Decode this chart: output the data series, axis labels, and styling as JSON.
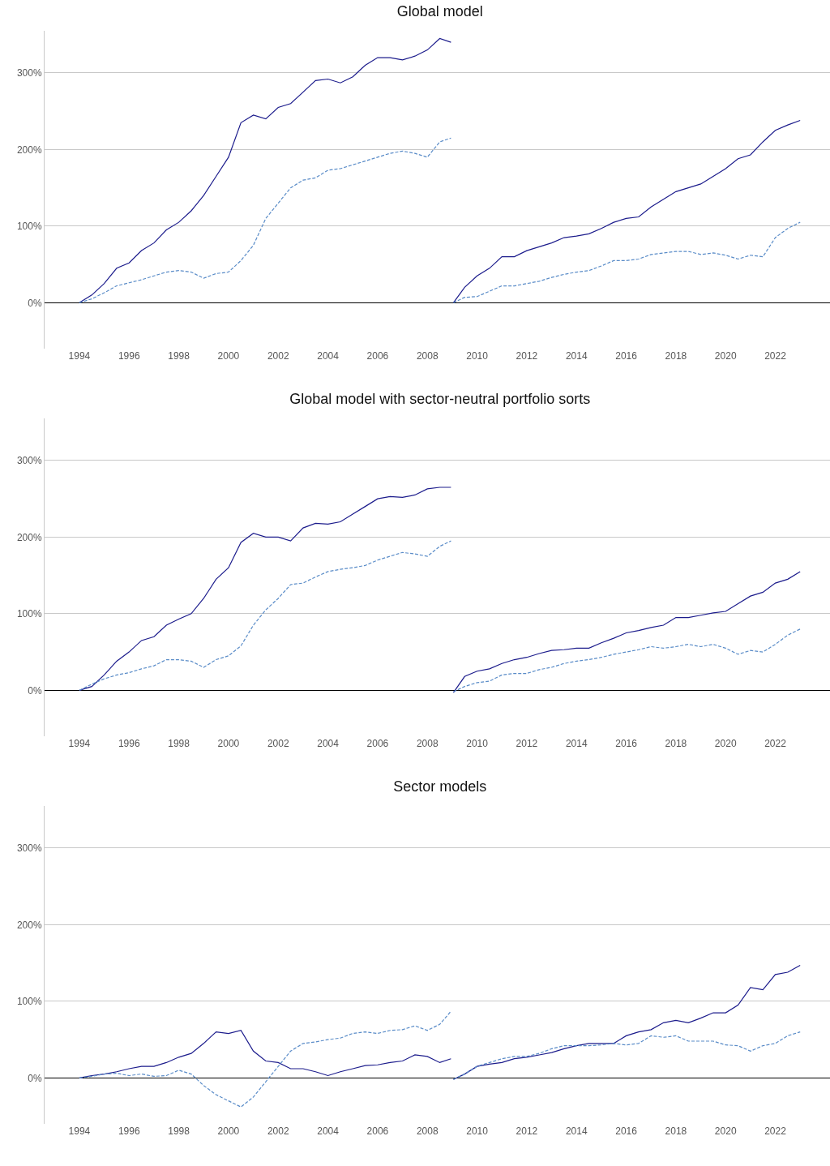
{
  "chart_data": [
    {
      "type": "line",
      "title": "Global model",
      "grid": "y",
      "xlim": [
        1992.6,
        2024.2
      ],
      "ylim": [
        -60,
        355
      ],
      "xticks": [
        1994,
        1996,
        1998,
        2000,
        2002,
        2004,
        2006,
        2008,
        2010,
        2012,
        2014,
        2016,
        2018,
        2020,
        2022
      ],
      "yticks": [
        {
          "value": 0,
          "label": "0%"
        },
        {
          "value": 100,
          "label": "100%"
        },
        {
          "value": 200,
          "label": "200%"
        },
        {
          "value": 300,
          "label": "300%"
        }
      ],
      "x": [
        1994,
        1994.5,
        1995,
        1995.5,
        1996,
        1996.5,
        1997,
        1997.5,
        1998,
        1998.5,
        1999,
        1999.5,
        2000,
        2000.5,
        2001,
        2001.5,
        2002,
        2002.5,
        2003,
        2003.5,
        2004,
        2004.5,
        2005,
        2005.5,
        2006,
        2006.5,
        2007,
        2007.5,
        2008,
        2008.5,
        2008.95,
        2009,
        2009.05,
        2009.5,
        2010,
        2010.5,
        2011,
        2011.5,
        2012,
        2012.5,
        2013,
        2013.5,
        2014,
        2014.5,
        2015,
        2015.5,
        2016,
        2016.5,
        2017,
        2017.5,
        2018,
        2018.5,
        2019,
        2019.5,
        2020,
        2020.5,
        2021,
        2021.5,
        2022,
        2022.5,
        2023
      ],
      "series": [
        {
          "color": "#1c1c8c",
          "line_style": "solid",
          "values": [
            0,
            10,
            25,
            45,
            52,
            68,
            78,
            95,
            105,
            120,
            140,
            165,
            190,
            235,
            245,
            240,
            255,
            260,
            275,
            290,
            292,
            287,
            295,
            310,
            320,
            320,
            317,
            322,
            330,
            345,
            340,
            null,
            0,
            20,
            35,
            45,
            60,
            60,
            68,
            73,
            78,
            85,
            87,
            90,
            97,
            105,
            110,
            112,
            125,
            135,
            145,
            150,
            155,
            165,
            175,
            188,
            193,
            210,
            225,
            232,
            238
          ]
        },
        {
          "color": "#5a8cc8",
          "line_style": "dashed",
          "values": [
            0,
            5,
            13,
            22,
            26,
            30,
            35,
            40,
            42,
            40,
            32,
            38,
            40,
            55,
            75,
            110,
            130,
            150,
            160,
            163,
            173,
            175,
            180,
            185,
            190,
            195,
            198,
            195,
            190,
            210,
            215,
            null,
            0,
            7,
            8,
            15,
            22,
            22,
            25,
            28,
            33,
            37,
            40,
            42,
            48,
            55,
            55,
            57,
            63,
            65,
            67,
            67,
            63,
            65,
            62,
            57,
            62,
            60,
            85,
            97,
            105
          ]
        }
      ]
    },
    {
      "type": "line",
      "title": "Global model with sector-neutral portfolio sorts",
      "grid": "y",
      "xlim": [
        1992.6,
        2024.2
      ],
      "ylim": [
        -60,
        355
      ],
      "xticks": [
        1994,
        1996,
        1998,
        2000,
        2002,
        2004,
        2006,
        2008,
        2010,
        2012,
        2014,
        2016,
        2018,
        2020,
        2022
      ],
      "yticks": [
        {
          "value": 0,
          "label": "0%"
        },
        {
          "value": 100,
          "label": "100%"
        },
        {
          "value": 200,
          "label": "200%"
        },
        {
          "value": 300,
          "label": "300%"
        }
      ],
      "x": [
        1994,
        1994.5,
        1995,
        1995.5,
        1996,
        1996.5,
        1997,
        1997.5,
        1998,
        1998.5,
        1999,
        1999.5,
        2000,
        2000.5,
        2001,
        2001.5,
        2002,
        2002.5,
        2003,
        2003.5,
        2004,
        2004.5,
        2005,
        2005.5,
        2006,
        2006.5,
        2007,
        2007.5,
        2008,
        2008.5,
        2008.95,
        2009,
        2009.05,
        2009.5,
        2010,
        2010.5,
        2011,
        2011.5,
        2012,
        2012.5,
        2013,
        2013.5,
        2014,
        2014.5,
        2015,
        2015.5,
        2016,
        2016.5,
        2017,
        2017.5,
        2018,
        2018.5,
        2019,
        2019.5,
        2020,
        2020.5,
        2021,
        2021.5,
        2022,
        2022.5,
        2023
      ],
      "series": [
        {
          "color": "#1c1c8c",
          "line_style": "solid",
          "values": [
            0,
            5,
            20,
            38,
            50,
            65,
            70,
            85,
            93,
            100,
            120,
            145,
            160,
            193,
            205,
            200,
            200,
            195,
            212,
            218,
            217,
            220,
            230,
            240,
            250,
            253,
            252,
            255,
            263,
            265,
            265,
            null,
            -3,
            18,
            25,
            28,
            35,
            40,
            43,
            48,
            52,
            53,
            55,
            55,
            62,
            68,
            75,
            78,
            82,
            85,
            95,
            95,
            98,
            101,
            103,
            113,
            123,
            128,
            140,
            145,
            155
          ]
        },
        {
          "color": "#5a8cc8",
          "line_style": "dashed",
          "values": [
            0,
            8,
            15,
            20,
            23,
            28,
            32,
            40,
            40,
            38,
            30,
            40,
            45,
            58,
            85,
            105,
            120,
            138,
            140,
            148,
            155,
            158,
            160,
            163,
            170,
            175,
            180,
            178,
            175,
            188,
            195,
            null,
            -2,
            5,
            10,
            12,
            20,
            22,
            22,
            27,
            30,
            35,
            38,
            40,
            43,
            47,
            50,
            53,
            57,
            55,
            57,
            60,
            57,
            60,
            55,
            47,
            52,
            50,
            60,
            72,
            80
          ]
        }
      ]
    },
    {
      "type": "line",
      "title": "Sector models",
      "grid": "y",
      "xlim": [
        1992.6,
        2024.2
      ],
      "ylim": [
        -60,
        355
      ],
      "xticks": [
        1994,
        1996,
        1998,
        2000,
        2002,
        2004,
        2006,
        2008,
        2010,
        2012,
        2014,
        2016,
        2018,
        2020,
        2022
      ],
      "yticks": [
        {
          "value": 0,
          "label": "0%"
        },
        {
          "value": 100,
          "label": "100%"
        },
        {
          "value": 200,
          "label": "200%"
        },
        {
          "value": 300,
          "label": "300%"
        }
      ],
      "x": [
        1994,
        1994.5,
        1995,
        1995.5,
        1996,
        1996.5,
        1997,
        1997.5,
        1998,
        1998.5,
        1999,
        1999.5,
        2000,
        2000.5,
        2001,
        2001.5,
        2002,
        2002.5,
        2003,
        2003.5,
        2004,
        2004.5,
        2005,
        2005.5,
        2006,
        2006.5,
        2007,
        2007.5,
        2008,
        2008.5,
        2008.95,
        2009,
        2009.05,
        2009.5,
        2010,
        2010.5,
        2011,
        2011.5,
        2012,
        2012.5,
        2013,
        2013.5,
        2014,
        2014.5,
        2015,
        2015.5,
        2016,
        2016.5,
        2017,
        2017.5,
        2018,
        2018.5,
        2019,
        2019.5,
        2020,
        2020.5,
        2021,
        2021.5,
        2022,
        2022.5,
        2023
      ],
      "series": [
        {
          "color": "#1c1c8c",
          "line_style": "solid",
          "values": [
            0,
            3,
            5,
            8,
            12,
            15,
            15,
            20,
            27,
            32,
            45,
            60,
            58,
            62,
            35,
            22,
            20,
            12,
            12,
            8,
            3,
            8,
            12,
            16,
            17,
            20,
            22,
            30,
            28,
            20,
            25,
            null,
            -2,
            5,
            15,
            18,
            20,
            25,
            27,
            30,
            33,
            38,
            42,
            45,
            45,
            45,
            55,
            60,
            63,
            72,
            75,
            72,
            78,
            85,
            85,
            95,
            118,
            115,
            135,
            138,
            147
          ]
        },
        {
          "color": "#5a8cc8",
          "line_style": "dashed",
          "values": [
            0,
            2,
            5,
            6,
            3,
            5,
            2,
            3,
            10,
            5,
            -10,
            -22,
            -30,
            -38,
            -25,
            -5,
            15,
            35,
            45,
            47,
            50,
            52,
            58,
            60,
            58,
            62,
            63,
            68,
            62,
            70,
            87,
            null,
            -2,
            5,
            15,
            20,
            25,
            28,
            28,
            32,
            38,
            42,
            42,
            42,
            43,
            45,
            43,
            45,
            55,
            53,
            55,
            48,
            48,
            48,
            43,
            42,
            35,
            42,
            45,
            55,
            60
          ]
        }
      ]
    }
  ]
}
